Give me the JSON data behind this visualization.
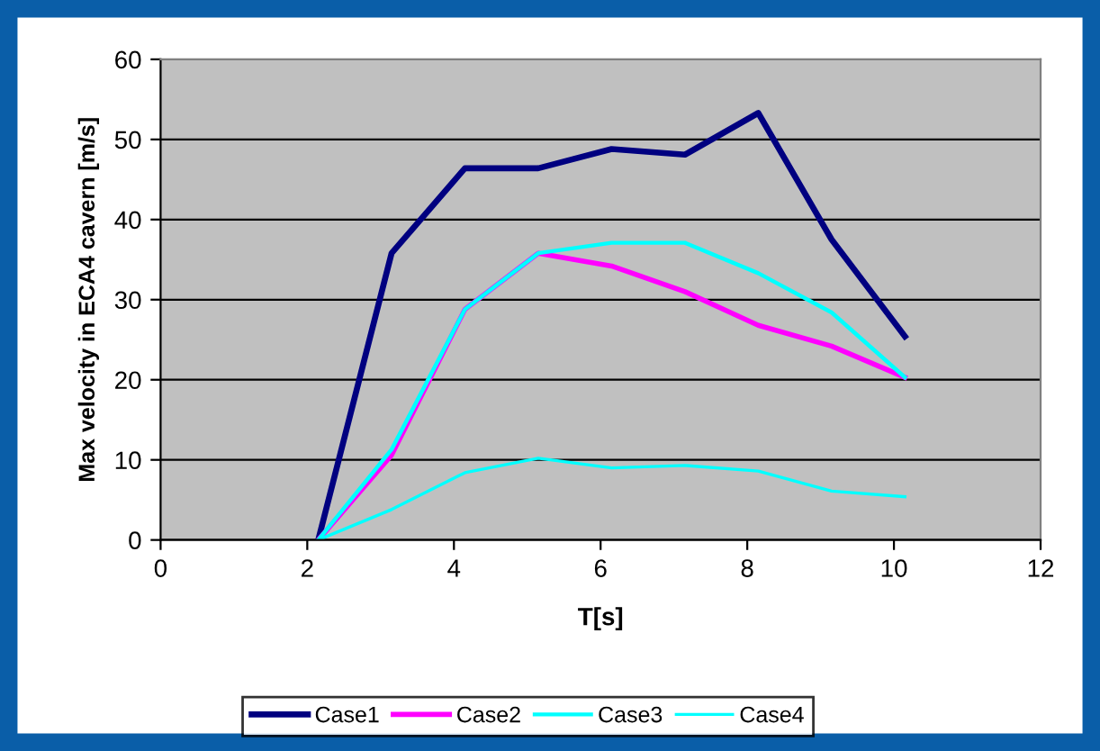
{
  "chart_data": {
    "type": "line",
    "xlabel": "T[s]",
    "ylabel": "Max velocity in ECA4 cavern [m/s]",
    "x": [
      2.15,
      3.15,
      4.15,
      5.15,
      6.15,
      7.15,
      8.15,
      9.15,
      10.15
    ],
    "xlim": [
      0,
      12
    ],
    "xticks": [
      0,
      2,
      4,
      6,
      8,
      10,
      12
    ],
    "ylim": [
      0,
      60
    ],
    "yticks": [
      0,
      10,
      20,
      30,
      40,
      50,
      60
    ],
    "grid": "y",
    "legend": "bottom",
    "marker": "none",
    "line_style": "solid",
    "series": [
      {
        "name": "Case1",
        "color": "#000080",
        "values": [
          0,
          35.8,
          46.4,
          46.4,
          48.8,
          48.1,
          53.3,
          37.5,
          25.4
        ]
      },
      {
        "name": "Case2",
        "color": "#ff00ff",
        "values": [
          0,
          10.6,
          28.8,
          35.8,
          34.2,
          31.0,
          26.8,
          24.2,
          20.3
        ]
      },
      {
        "name": "Case3",
        "color": "#00ffff",
        "values": [
          0,
          11.3,
          28.8,
          35.8,
          37.1,
          37.1,
          33.3,
          28.4,
          20.3
        ]
      },
      {
        "name": "Case4",
        "color": "#00ffff",
        "values": [
          0,
          3.8,
          8.4,
          10.2,
          9.0,
          9.3,
          8.6,
          6.1,
          5.4
        ]
      }
    ]
  }
}
